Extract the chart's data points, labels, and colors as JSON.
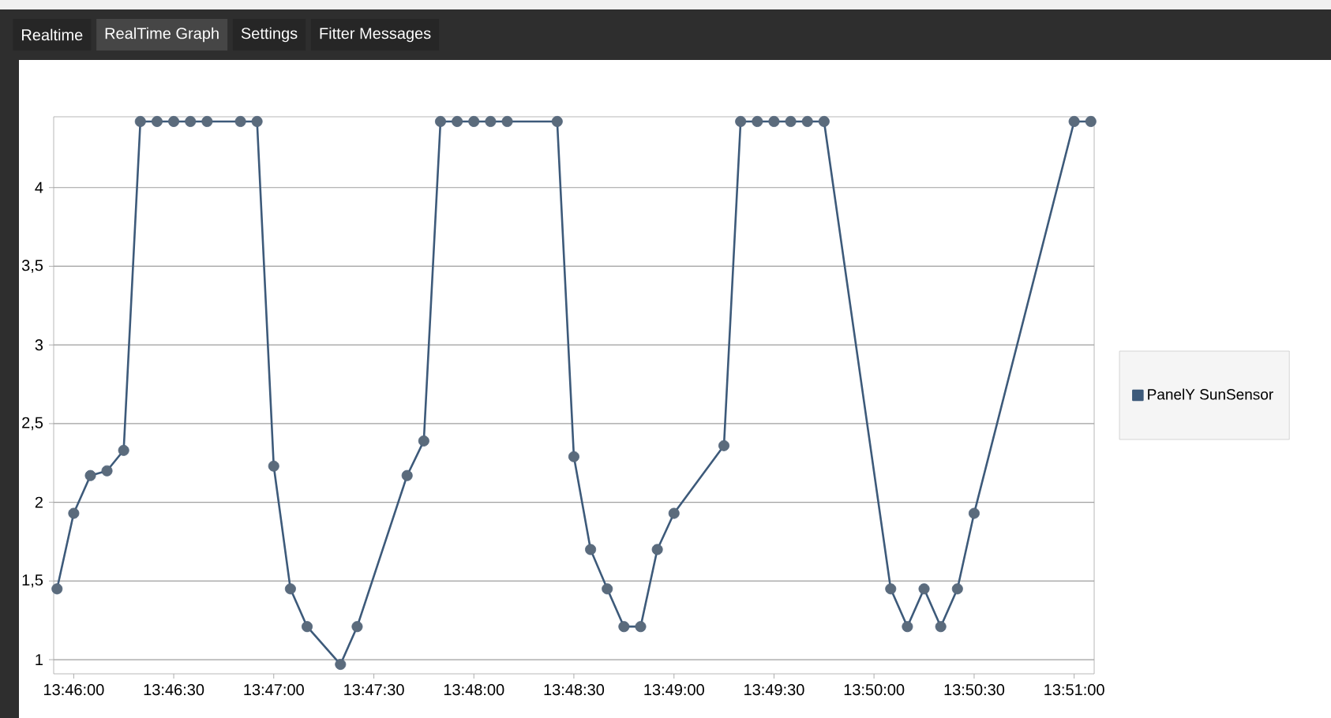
{
  "chart_data": {
    "type": "line",
    "annotations": [
      "Realtime",
      "RealTime Graph",
      "Settings",
      "Fitter Messages"
    ],
    "x": [
      13.76528,
      13.76667,
      13.76806,
      13.76944,
      13.77083,
      13.77222,
      13.77361,
      13.775,
      13.77639,
      13.77778,
      13.78056,
      13.78194,
      13.78333,
      13.78472,
      13.78611,
      13.78889,
      13.79028,
      13.79444,
      13.79583,
      13.79722,
      13.79861,
      13.8,
      13.80139,
      13.80278,
      13.80694,
      13.80833,
      13.80972,
      13.81111,
      13.8125,
      13.81389,
      13.81528,
      13.81667,
      13.82083,
      13.82222,
      13.82361,
      13.825,
      13.82639,
      13.82778,
      13.82917,
      13.83472,
      13.83611,
      13.8375,
      13.83889,
      13.84028,
      13.84167,
      13.85,
      13.85139
    ],
    "series": [
      {
        "name": "PanelY SunSensor",
        "color": "#3d5a7a",
        "values": [
          1.45,
          1.93,
          2.17,
          2.2,
          2.33,
          4.42,
          4.42,
          4.42,
          4.42,
          4.42,
          4.42,
          4.42,
          2.23,
          1.45,
          1.21,
          0.97,
          1.21,
          2.17,
          2.39,
          4.42,
          4.42,
          4.42,
          4.42,
          4.42,
          4.42,
          2.29,
          1.7,
          1.45,
          1.21,
          1.21,
          1.7,
          1.93,
          2.36,
          4.42,
          4.42,
          4.42,
          4.42,
          4.42,
          4.42,
          1.45,
          1.21,
          1.45,
          1.21,
          1.45,
          1.93,
          4.42,
          4.42
        ]
      }
    ],
    "xlim": [
      13.765,
      13.85167
    ],
    "xticks": [
      {
        "value": 13.76667,
        "label": "13:46:00"
      },
      {
        "value": 13.775,
        "label": "13:46:30"
      },
      {
        "value": 13.78333,
        "label": "13:47:00"
      },
      {
        "value": 13.79167,
        "label": "13:47:30"
      },
      {
        "value": 13.8,
        "label": "13:48:00"
      },
      {
        "value": 13.80833,
        "label": "13:48:30"
      },
      {
        "value": 13.81667,
        "label": "13:49:00"
      },
      {
        "value": 13.825,
        "label": "13:49:30"
      },
      {
        "value": 13.83333,
        "label": "13:50:00"
      },
      {
        "value": 13.84167,
        "label": "13:50:30"
      },
      {
        "value": 13.85,
        "label": "13:51:00"
      }
    ],
    "ylim": [
      0.91,
      4.45
    ],
    "yticks": [
      1,
      {
        "value": 1.5,
        "label": "1,5"
      },
      2,
      {
        "value": 2.5,
        "label": "2,5"
      },
      3,
      {
        "value": 3.5,
        "label": "3,5"
      },
      4
    ],
    "grid": "y",
    "legend": "right",
    "marker": "circle",
    "line_style": "solid"
  }
}
